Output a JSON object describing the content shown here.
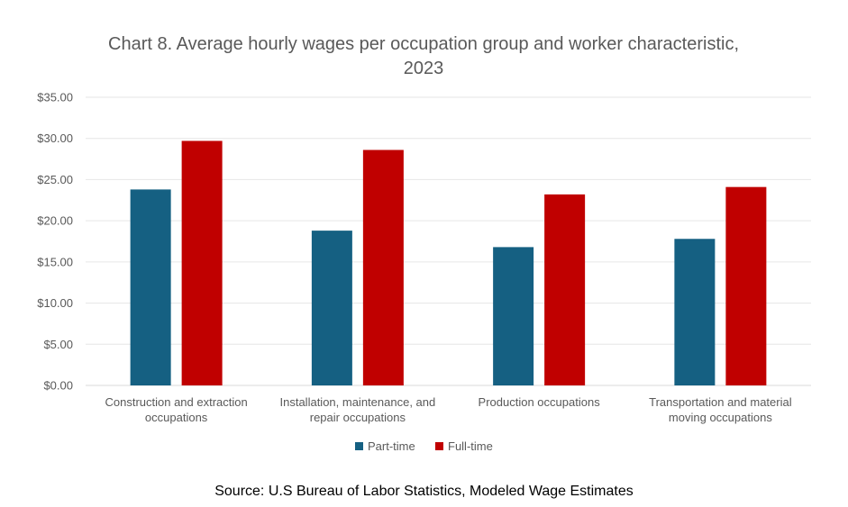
{
  "chart_data": {
    "type": "bar",
    "title": "Chart 8. Average hourly wages per occupation group and worker characteristic, 2023",
    "categories": [
      [
        "Construction and extraction",
        "occupations"
      ],
      [
        "Installation, maintenance, and",
        "repair occupations"
      ],
      [
        "Production occupations"
      ],
      [
        "Transportation and material",
        "moving occupations"
      ]
    ],
    "series": [
      {
        "name": "Part-time",
        "color": "#156082",
        "values": [
          23.8,
          18.8,
          16.8,
          17.8
        ]
      },
      {
        "name": "Full-time",
        "color": "#C00000",
        "values": [
          29.7,
          28.6,
          23.2,
          24.1
        ]
      }
    ],
    "ylim": [
      0,
      35
    ],
    "yticks": [
      "$0.00",
      "$5.00",
      "$10.00",
      "$15.00",
      "$20.00",
      "$25.00",
      "$30.00",
      "$35.00"
    ],
    "ytick_values": [
      0,
      5,
      10,
      15,
      20,
      25,
      30,
      35
    ],
    "grid": true,
    "legend_position": "bottom",
    "source": "Source: U.S Bureau of Labor Statistics, Modeled Wage Estimates"
  }
}
